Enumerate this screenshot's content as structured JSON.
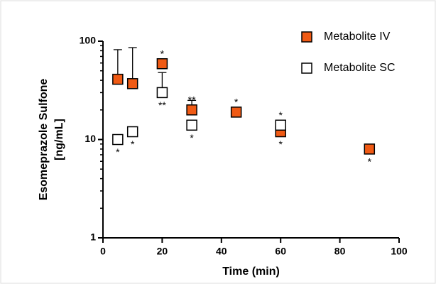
{
  "chart_data": {
    "type": "scatter",
    "xlabel": "Time (min)",
    "ylabel": [
      "Esomeprazole Sulfone",
      "[ng/mL]"
    ],
    "xlim": [
      0,
      100
    ],
    "xticks": [
      0,
      20,
      40,
      60,
      80,
      100
    ],
    "ylim": [
      1,
      100
    ],
    "yticks": [
      1,
      10,
      100
    ],
    "yscale": "log",
    "series": [
      {
        "name": "Metabolite IV",
        "color": "#f05a14",
        "marker": "filled",
        "x": [
          5,
          10,
          20,
          30,
          45,
          60,
          90
        ],
        "values": [
          41,
          37,
          59,
          20,
          19,
          12,
          8
        ],
        "errors": [
          41,
          49,
          null,
          5,
          null,
          null,
          null
        ],
        "annotations": [
          null,
          null,
          "*",
          "**",
          "*",
          "*",
          "*"
        ]
      },
      {
        "name": "Metabolite SC",
        "color": "#ffffff",
        "marker": "open",
        "x": [
          5,
          10,
          20,
          30,
          60
        ],
        "values": [
          10,
          12,
          30,
          14,
          14
        ],
        "errors": [
          null,
          null,
          18,
          null,
          null
        ],
        "annotations": [
          "*",
          "*",
          "**",
          "*",
          "*"
        ]
      }
    ]
  }
}
